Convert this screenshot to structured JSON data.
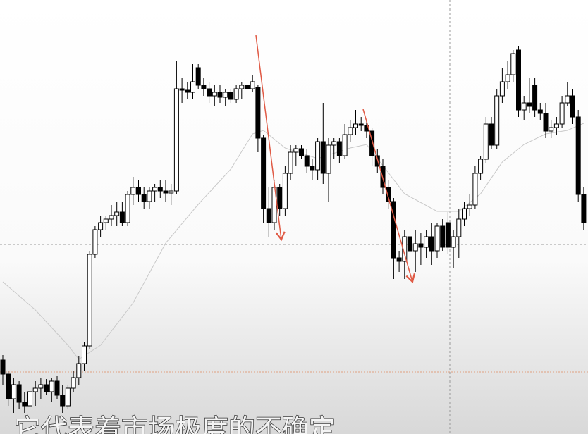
{
  "chart_data": {
    "type": "candlestick",
    "up_color": "#ffffff",
    "down_color": "#000000",
    "candles": [
      [
        105,
        112,
        70,
        85
      ],
      [
        85,
        90,
        40,
        50
      ],
      [
        50,
        80,
        30,
        70
      ],
      [
        70,
        75,
        35,
        45
      ],
      [
        45,
        60,
        30,
        40
      ],
      [
        40,
        70,
        35,
        60
      ],
      [
        60,
        75,
        40,
        65
      ],
      [
        65,
        80,
        50,
        70
      ],
      [
        70,
        78,
        55,
        60
      ],
      [
        60,
        80,
        45,
        75
      ],
      [
        75,
        82,
        50,
        55
      ],
      [
        55,
        70,
        30,
        40
      ],
      [
        40,
        70,
        35,
        65
      ],
      [
        65,
        90,
        60,
        80
      ],
      [
        80,
        110,
        70,
        100
      ],
      [
        100,
        130,
        90,
        125
      ],
      [
        125,
        260,
        120,
        255
      ],
      [
        255,
        295,
        250,
        290
      ],
      [
        290,
        310,
        280,
        300
      ],
      [
        300,
        310,
        290,
        305
      ],
      [
        305,
        325,
        295,
        310
      ],
      [
        310,
        330,
        295,
        315
      ],
      [
        315,
        330,
        295,
        300
      ],
      [
        300,
        345,
        295,
        340
      ],
      [
        340,
        365,
        325,
        350
      ],
      [
        350,
        360,
        330,
        340
      ],
      [
        340,
        350,
        320,
        330
      ],
      [
        330,
        350,
        320,
        345
      ],
      [
        345,
        355,
        330,
        350
      ],
      [
        350,
        360,
        335,
        345
      ],
      [
        345,
        360,
        330,
        342
      ],
      [
        342,
        355,
        325,
        345
      ],
      [
        345,
        530,
        340,
        490
      ],
      [
        490,
        505,
        470,
        488
      ],
      [
        488,
        500,
        475,
        485
      ],
      [
        485,
        525,
        475,
        500
      ],
      [
        520,
        525,
        490,
        495
      ],
      [
        495,
        505,
        480,
        490
      ],
      [
        490,
        500,
        470,
        480
      ],
      [
        480,
        495,
        465,
        485
      ],
      [
        485,
        495,
        470,
        478
      ],
      [
        478,
        490,
        465,
        485
      ],
      [
        485,
        490,
        470,
        475
      ],
      [
        475,
        495,
        470,
        490
      ],
      [
        490,
        500,
        475,
        495
      ],
      [
        495,
        505,
        480,
        490
      ],
      [
        490,
        510,
        485,
        500
      ],
      [
        492,
        495,
        400,
        420
      ],
      [
        420,
        425,
        300,
        320
      ],
      [
        320,
        350,
        280,
        300
      ],
      [
        300,
        360,
        290,
        350
      ],
      [
        350,
        355,
        310,
        320
      ],
      [
        320,
        380,
        310,
        370
      ],
      [
        370,
        410,
        360,
        400
      ],
      [
        400,
        410,
        380,
        405
      ],
      [
        405,
        410,
        390,
        395
      ],
      [
        395,
        405,
        370,
        380
      ],
      [
        380,
        390,
        360,
        375
      ],
      [
        375,
        420,
        360,
        415
      ],
      [
        415,
        470,
        355,
        370
      ],
      [
        370,
        420,
        330,
        410
      ],
      [
        410,
        420,
        390,
        415
      ],
      [
        415,
        420,
        385,
        395
      ],
      [
        395,
        440,
        390,
        425
      ],
      [
        425,
        445,
        415,
        435
      ],
      [
        435,
        460,
        425,
        440
      ],
      [
        440,
        450,
        430,
        438
      ],
      [
        438,
        445,
        420,
        430
      ],
      [
        430,
        435,
        380,
        395
      ],
      [
        395,
        405,
        370,
        380
      ],
      [
        380,
        390,
        340,
        350
      ],
      [
        350,
        360,
        320,
        330
      ],
      [
        330,
        335,
        220,
        250
      ],
      [
        250,
        260,
        230,
        245
      ],
      [
        245,
        290,
        220,
        280
      ],
      [
        280,
        290,
        250,
        260
      ],
      [
        260,
        290,
        230,
        270
      ],
      [
        270,
        285,
        240,
        265
      ],
      [
        265,
        290,
        250,
        280
      ],
      [
        280,
        300,
        240,
        260
      ],
      [
        260,
        300,
        250,
        295
      ],
      [
        295,
        305,
        260,
        265
      ],
      [
        300,
        315,
        255,
        265
      ],
      [
        265,
        290,
        235,
        280
      ],
      [
        280,
        320,
        250,
        305
      ],
      [
        305,
        330,
        295,
        320
      ],
      [
        320,
        340,
        310,
        325
      ],
      [
        325,
        380,
        320,
        370
      ],
      [
        370,
        395,
        360,
        390
      ],
      [
        390,
        450,
        385,
        440
      ],
      [
        440,
        450,
        405,
        410
      ],
      [
        410,
        490,
        405,
        480
      ],
      [
        480,
        520,
        470,
        500
      ],
      [
        500,
        530,
        490,
        510
      ],
      [
        510,
        545,
        500,
        540
      ],
      [
        545,
        550,
        450,
        460
      ],
      [
        460,
        480,
        445,
        470
      ],
      [
        470,
        505,
        455,
        465
      ],
      [
        495,
        505,
        450,
        460
      ],
      [
        460,
        470,
        445,
        455
      ],
      [
        455,
        470,
        420,
        430
      ],
      [
        430,
        445,
        420,
        435
      ],
      [
        435,
        450,
        425,
        440
      ],
      [
        440,
        480,
        435,
        470
      ],
      [
        470,
        500,
        465,
        480
      ],
      [
        480,
        490,
        440,
        450
      ],
      [
        450,
        460,
        330,
        340
      ],
      [
        340,
        350,
        290,
        300
      ]
    ],
    "ma": {
      "color": "#c8c8c8",
      "x": [
        0,
        6,
        12,
        14,
        18,
        24,
        30,
        36,
        42,
        46,
        48,
        52,
        58,
        64,
        67,
        70,
        74,
        80,
        84,
        88,
        92,
        96,
        100,
        104,
        107
      ],
      "values": [
        216,
        176,
        126,
        106,
        126,
        186,
        271,
        326,
        376,
        426,
        431,
        406,
        391,
        406,
        411,
        381,
        341,
        316,
        316,
        341,
        386,
        411,
        426,
        431,
        441
      ]
    }
  },
  "subtitle": "它代表着市场极度的不确定"
}
